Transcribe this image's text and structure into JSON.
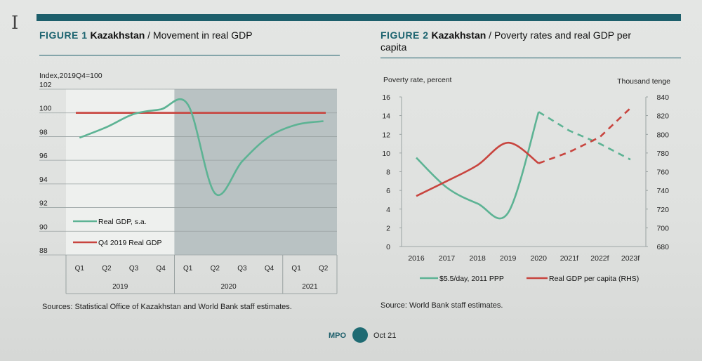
{
  "figure1": {
    "number": "FIGURE 1",
    "country": "Kazakhstan",
    "subtitle": "/ Movement in real GDP",
    "source": "Sources: Statistical Office of Kazakhstan and World Bank staff estimates.",
    "chart_data": {
      "type": "line",
      "ylabel": "Index,2019Q4=100",
      "ylim": [
        88,
        102
      ],
      "yticks": [
        88,
        90,
        92,
        94,
        96,
        98,
        100,
        102
      ],
      "categories": [
        "Q1",
        "Q2",
        "Q3",
        "Q4",
        "Q1",
        "Q2",
        "Q3",
        "Q4",
        "Q1",
        "Q2"
      ],
      "year_groups": [
        {
          "label": "2019",
          "from": 0,
          "to": 3
        },
        {
          "label": "2020",
          "from": 4,
          "to": 7
        },
        {
          "label": "2021",
          "from": 8,
          "to": 9
        }
      ],
      "shaded_from_index": 4,
      "series": [
        {
          "name": "Real GDP, s.a.",
          "color": "#5db394",
          "values": [
            97.9,
            98.8,
            99.9,
            100.3,
            100.7,
            93.2,
            95.9,
            98.0,
            99.0,
            99.3
          ]
        },
        {
          "name": "Q4 2019 Real GDP",
          "color": "#c8443e",
          "values": [
            100,
            100,
            100,
            100,
            100,
            100,
            100,
            100,
            100,
            100
          ]
        }
      ],
      "legend_position": "bottom-left"
    }
  },
  "figure2": {
    "number": "FIGURE 2",
    "country": "Kazakhstan",
    "subtitle": "/ Poverty rates and real GDP per capita",
    "source": "Source: World Bank staff estimates.",
    "chart_data": {
      "type": "line",
      "ylabel": "Poverty rate, percent",
      "y2label": "Thousand tenge",
      "ylim": [
        0,
        16
      ],
      "yticks": [
        0,
        2,
        4,
        6,
        8,
        10,
        12,
        14,
        16
      ],
      "y2lim": [
        680,
        840
      ],
      "y2ticks": [
        680,
        700,
        720,
        740,
        760,
        780,
        800,
        820,
        840
      ],
      "categories": [
        "2016",
        "2017",
        "2018",
        "2019",
        "2020",
        "2021f",
        "2022f",
        "2023f"
      ],
      "forecast_from_index": 5,
      "series": [
        {
          "name": "$5.5/day, 2011 PPP",
          "color": "#5db394",
          "axis": "left",
          "values": [
            9.5,
            6.3,
            4.6,
            3.6,
            14.4,
            12.4,
            11.0,
            9.3
          ]
        },
        {
          "name": "Real GDP per capita (RHS)",
          "color": "#c8443e",
          "axis": "right",
          "values": [
            734,
            750,
            767,
            791,
            769,
            781,
            797,
            828
          ]
        }
      ],
      "legend_position": "bottom"
    }
  },
  "footer": {
    "left": "MPO",
    "right": "Oct 21",
    "dot_color": "#1f6b73"
  }
}
